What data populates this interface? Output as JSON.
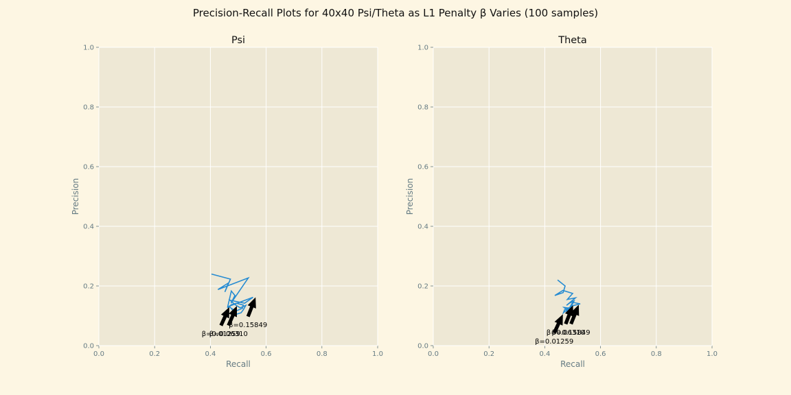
{
  "figure": {
    "title": "Precision-Recall Plots for 40x40 Psi/Theta as L1 Penalty β Varies (100 samples)"
  },
  "chart_data": [
    {
      "type": "line",
      "title": "Psi",
      "xlabel": "Recall",
      "ylabel": "Precision",
      "xlim": [
        0,
        1
      ],
      "ylim": [
        0,
        1
      ],
      "xticks": [
        "0.0",
        "0.2",
        "0.4",
        "0.6",
        "0.8",
        "1.0"
      ],
      "yticks": [
        "0.0",
        "0.2",
        "0.4",
        "0.6",
        "0.8",
        "1.0"
      ],
      "grid": true,
      "color": "#268bd2",
      "series": [
        {
          "x": [
            0.404,
            0.472,
            0.452,
            0.465,
            0.427,
            0.536,
            0.474,
            0.488,
            0.475,
            0.462,
            0.553,
            0.523,
            0.471,
            0.489,
            0.507,
            0.527,
            0.518,
            0.51,
            0.492,
            0.47,
            0.461,
            0.475,
            0.493,
            0.518,
            0.515,
            0.489,
            0.485,
            0.476
          ],
          "y": [
            0.24,
            0.223,
            0.18,
            0.21,
            0.188,
            0.227,
            0.142,
            0.168,
            0.183,
            0.13,
            0.162,
            0.142,
            0.152,
            0.137,
            0.127,
            0.135,
            0.12,
            0.11,
            0.105,
            0.13,
            0.127,
            0.137,
            0.142,
            0.136,
            0.125,
            0.115,
            0.118,
            0.125
          ]
        }
      ],
      "annotations": [
        {
          "text": "β=0.15849",
          "point": [
            0.562,
            0.162
          ],
          "text_pos": [
            0.535,
            0.07
          ]
        },
        {
          "text": "β=0.06310",
          "point": [
            0.495,
            0.133
          ],
          "text_pos": [
            0.465,
            0.04
          ]
        },
        {
          "text": "β=0.01259",
          "point": [
            0.468,
            0.129
          ],
          "text_pos": [
            0.438,
            0.04
          ]
        }
      ]
    },
    {
      "type": "line",
      "title": "Theta",
      "xlabel": "Recall",
      "ylabel": "Precision",
      "xlim": [
        0,
        1
      ],
      "ylim": [
        0,
        1
      ],
      "xticks": [
        "0.0",
        "0.2",
        "0.4",
        "0.6",
        "0.8",
        "1.0"
      ],
      "yticks": [
        "0.0",
        "0.2",
        "0.4",
        "0.6",
        "0.8",
        "1.0"
      ],
      "grid": true,
      "color": "#268bd2",
      "series": [
        {
          "x": [
            0.446,
            0.473,
            0.466,
            0.436,
            0.465,
            0.5,
            0.481,
            0.51,
            0.478,
            0.488,
            0.505,
            0.492,
            0.469,
            0.483,
            0.5,
            0.527,
            0.505,
            0.471,
            0.467,
            0.49,
            0.497,
            0.475
          ],
          "y": [
            0.22,
            0.2,
            0.178,
            0.168,
            0.185,
            0.175,
            0.155,
            0.16,
            0.135,
            0.142,
            0.15,
            0.125,
            0.128,
            0.117,
            0.145,
            0.14,
            0.135,
            0.12,
            0.11,
            0.128,
            0.12,
            0.115
          ]
        }
      ],
      "annotations": [
        {
          "text": "β=0.15849",
          "point": [
            0.522,
            0.137
          ],
          "text_pos": [
            0.494,
            0.045
          ]
        },
        {
          "text": "β=0.06310",
          "point": [
            0.501,
            0.135
          ],
          "text_pos": [
            0.475,
            0.045
          ]
        },
        {
          "text": "β=0.01259",
          "point": [
            0.465,
            0.105
          ],
          "text_pos": [
            0.434,
            0.015
          ]
        }
      ]
    }
  ]
}
